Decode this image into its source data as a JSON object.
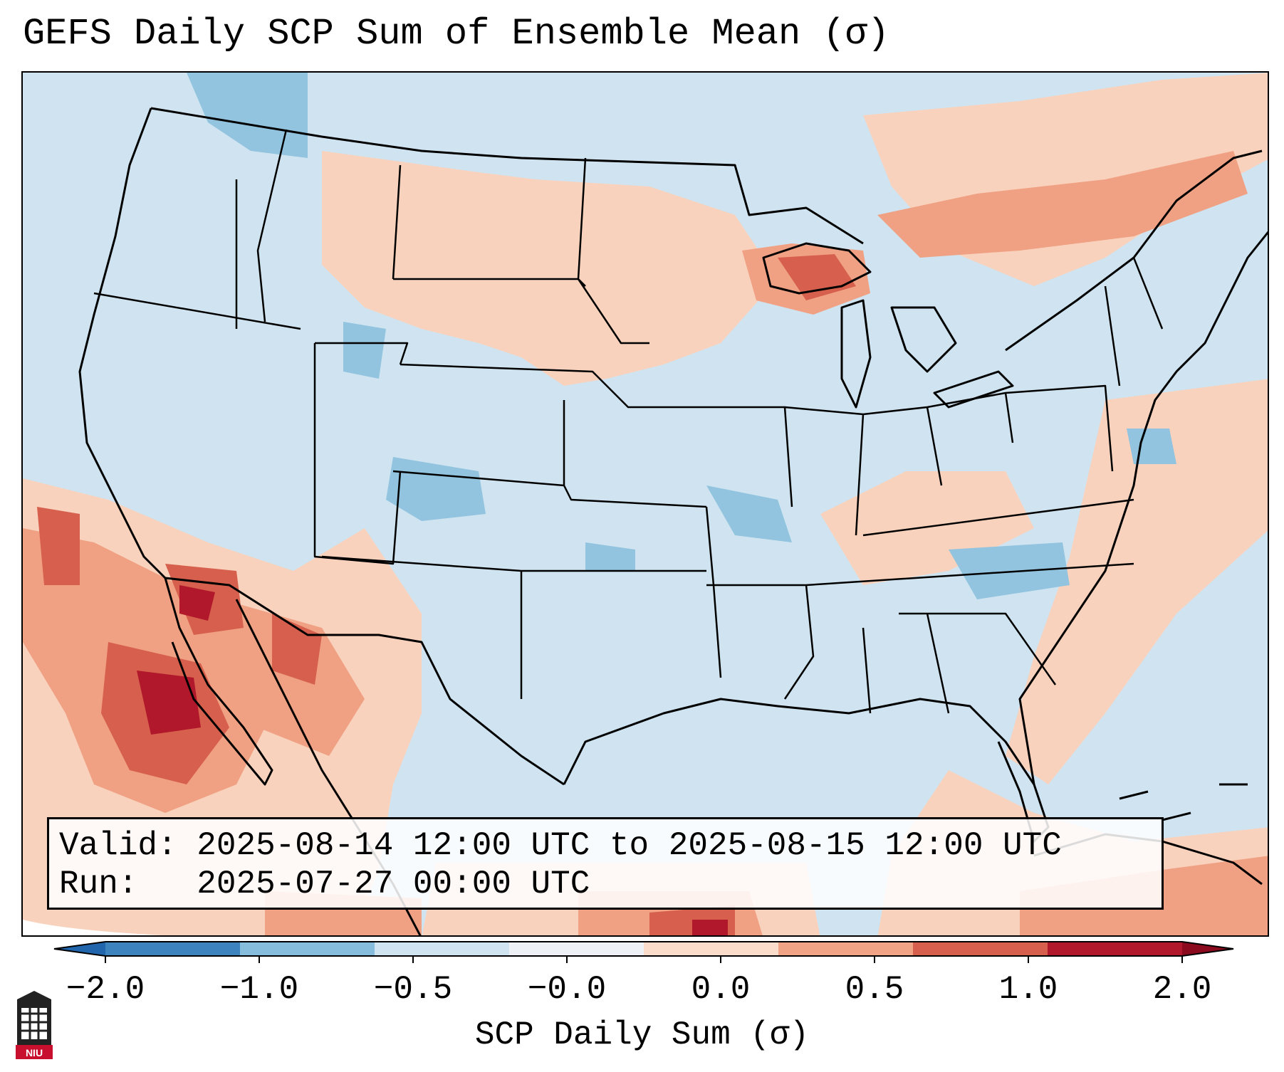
{
  "title": "GEFS Daily SCP Sum of Ensemble Mean (σ)",
  "info": {
    "valid_label": "Valid:",
    "valid_text": "2025-08-14 12:00 UTC to 2025-08-15 12:00 UTC",
    "run_label": "Run:",
    "run_text": "2025-07-27 00:00 UTC"
  },
  "colorbar": {
    "label": "SCP Daily Sum (σ)",
    "ticks": [
      "−2.0",
      "−1.0",
      "−0.5",
      "−0.0",
      "0.0",
      "0.5",
      "1.0",
      "2.0"
    ],
    "bin_colors": [
      "#3d84be",
      "#86bcdc",
      "#cfe4f0",
      "#eef2f6",
      "#fbdccb",
      "#f1a386",
      "#d6604d",
      "#b2182b"
    ],
    "extend": "both"
  },
  "map_colors": {
    "background": "#cfe4f0",
    "light_red": "#f9d2bd",
    "mid_red": "#f0a183",
    "dark_red": "#d6604d",
    "deep_red": "#b2182b",
    "mid_blue": "#92c4df"
  },
  "logo": {
    "text": "NIU",
    "color": "#c8102e"
  }
}
